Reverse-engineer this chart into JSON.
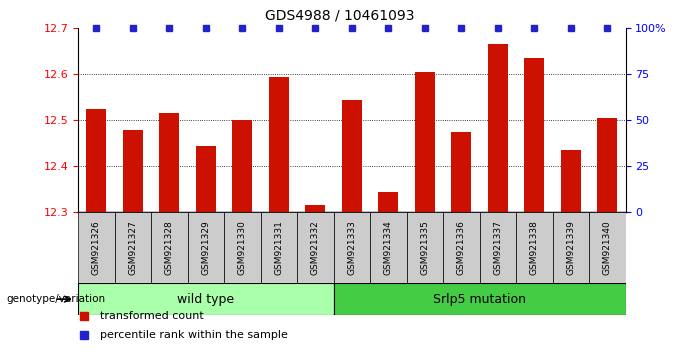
{
  "title": "GDS4988 / 10461093",
  "samples": [
    "GSM921326",
    "GSM921327",
    "GSM921328",
    "GSM921329",
    "GSM921330",
    "GSM921331",
    "GSM921332",
    "GSM921333",
    "GSM921334",
    "GSM921335",
    "GSM921336",
    "GSM921337",
    "GSM921338",
    "GSM921339",
    "GSM921340"
  ],
  "bar_values": [
    12.525,
    12.48,
    12.515,
    12.445,
    12.5,
    12.595,
    12.315,
    12.545,
    12.345,
    12.605,
    12.475,
    12.665,
    12.635,
    12.435,
    12.505
  ],
  "percentile_values": [
    100,
    100,
    100,
    100,
    100,
    100,
    100,
    100,
    100,
    100,
    100,
    100,
    100,
    100,
    100
  ],
  "bar_color": "#CC1100",
  "percentile_color": "#2222CC",
  "ymin": 12.3,
  "ymax": 12.7,
  "yticks": [
    12.3,
    12.4,
    12.5,
    12.6,
    12.7
  ],
  "right_yticks": [
    0,
    25,
    50,
    75,
    100
  ],
  "right_ytick_labels": [
    "0",
    "25",
    "50",
    "75",
    "100%"
  ],
  "wild_type_count": 7,
  "srlp5_count": 8,
  "wild_type_label": "wild type",
  "srlp5_label": "Srlp5 mutation",
  "genotype_label": "genotype/variation",
  "legend_bar_label": "transformed count",
  "legend_pct_label": "percentile rank within the sample",
  "bg_axes": "#FFFFFF",
  "sample_box_color": "#CCCCCC",
  "group_bar_light_green": "#AAFFAA",
  "group_bar_dark_green": "#44CC44",
  "grid_dotted_color": "#555555"
}
